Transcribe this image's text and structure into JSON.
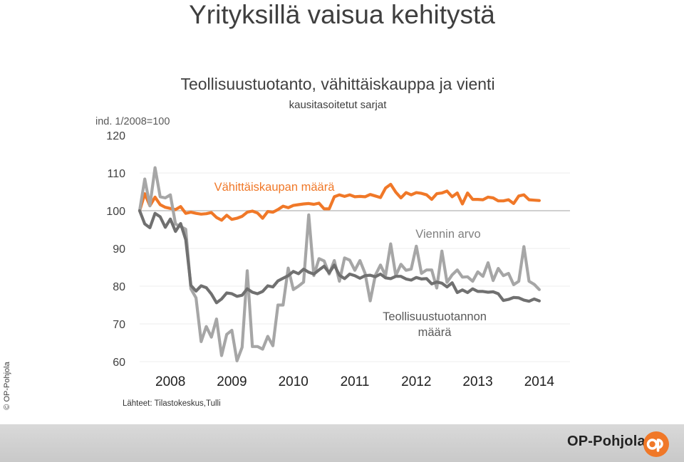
{
  "slide_title": "Yrityksillä vaisua kehitystä",
  "copyright": "© OP-Pohjola",
  "source": "Lähteet: Tilastokeskus,Tulli",
  "brand": {
    "name": "OP-Pohjola",
    "logo_icon": "op-logo-icon",
    "logo_color": "#f07828"
  },
  "chart_data": {
    "type": "line",
    "title": "Teollisuustuotanto, vähittäiskauppa ja vienti",
    "subtitle": "kausitasoitetut sarjat",
    "index_label": "ind. 1/2008=100",
    "yticks": [
      120,
      110,
      100,
      90,
      80,
      70,
      60
    ],
    "ylim": [
      60,
      120
    ],
    "xticks": [
      "2008",
      "2009",
      "2010",
      "2011",
      "2012",
      "2013",
      "2014"
    ],
    "x_start": 2008.0,
    "x_step": 0.083333,
    "reference_line": 100,
    "series": [
      {
        "name": "Vähittäiskaupan määrä",
        "color": "#f07828",
        "values": [
          100,
          104.5,
          101.3,
          103.6,
          101.6,
          100.9,
          100.6,
          100.3,
          101.1,
          99.3,
          99.6,
          99.3,
          99.1,
          99.2,
          99.5,
          98.2,
          97.5,
          98.8,
          97.7,
          98.0,
          98.5,
          99.6,
          99.9,
          99.4,
          98.0,
          99.8,
          99.6,
          100.3,
          101.2,
          100.8,
          101.4,
          101.6,
          101.8,
          101.9,
          101.7,
          102.0,
          100.5,
          100.5,
          103.7,
          104.2,
          103.8,
          104.2,
          103.7,
          103.8,
          103.7,
          104.3,
          103.9,
          103.5,
          106.0,
          107.0,
          104.9,
          103.4,
          104.8,
          104.2,
          104.8,
          104.6,
          104.2,
          103.0,
          104.5,
          104.7,
          105.2,
          103.7,
          104.7,
          101.8,
          104.7,
          103.0,
          103.0,
          102.9,
          103.6,
          103.4,
          102.6,
          102.6,
          102.9,
          101.9,
          103.9,
          104.2,
          102.9,
          102.8,
          102.7
        ]
      },
      {
        "name": "Viennin arvo",
        "color": "#a6a6a6",
        "values": [
          100,
          108.4,
          101.3,
          111.4,
          103.7,
          103.4,
          104.2,
          96.5,
          95.8,
          95.1,
          79.3,
          76.9,
          65.3,
          69.3,
          66.5,
          71.3,
          61.6,
          67.2,
          68.3,
          60.2,
          63.8,
          84.1,
          64.0,
          64.0,
          63.3,
          66.7,
          64.2,
          75.0,
          75.0,
          84.8,
          79.1,
          80.0,
          81.1,
          98.9,
          82.8,
          87.3,
          86.7,
          83.2,
          86.8,
          81.3,
          87.5,
          86.9,
          84.2,
          86.8,
          83.4,
          76.1,
          82.9,
          85.6,
          82.8,
          91.2,
          82.8,
          85.8,
          84.2,
          84.5,
          90.6,
          83.4,
          84.3,
          84.3,
          79.5,
          89.3,
          81.0,
          83.0,
          84.3,
          82.4,
          82.5,
          81.3,
          83.8,
          82.6,
          86.2,
          81.5,
          84.7,
          82.8,
          83.4,
          80.4,
          81.3,
          90.5,
          81.3,
          80.5,
          79.1
        ]
      },
      {
        "name": "Teollisuustuotannon määrä",
        "color": "#707070",
        "values": [
          100,
          96.5,
          95.5,
          99.3,
          98.4,
          95.6,
          97.8,
          94.5,
          96.6,
          92.3,
          80.2,
          78.7,
          80.1,
          79.6,
          77.9,
          75.6,
          76.6,
          78.2,
          78.0,
          77.3,
          77.6,
          79.3,
          78.4,
          78.0,
          78.6,
          80.1,
          79.8,
          81.4,
          82.1,
          82.8,
          83.9,
          83.3,
          84.5,
          83.7,
          83.2,
          84.3,
          85.3,
          83.5,
          85.6,
          82.9,
          82.0,
          83.2,
          82.8,
          82.1,
          82.8,
          82.9,
          82.5,
          83.2,
          82.2,
          82.0,
          82.6,
          82.6,
          81.9,
          81.6,
          82.3,
          81.9,
          82.0,
          80.6,
          81.1,
          80.8,
          79.8,
          80.9,
          78.3,
          79.0,
          78.3,
          79.3,
          78.6,
          78.6,
          78.4,
          78.5,
          78.0,
          76.2,
          76.5,
          77.0,
          76.9,
          76.3,
          76.0,
          76.6,
          76.1
        ]
      }
    ]
  }
}
